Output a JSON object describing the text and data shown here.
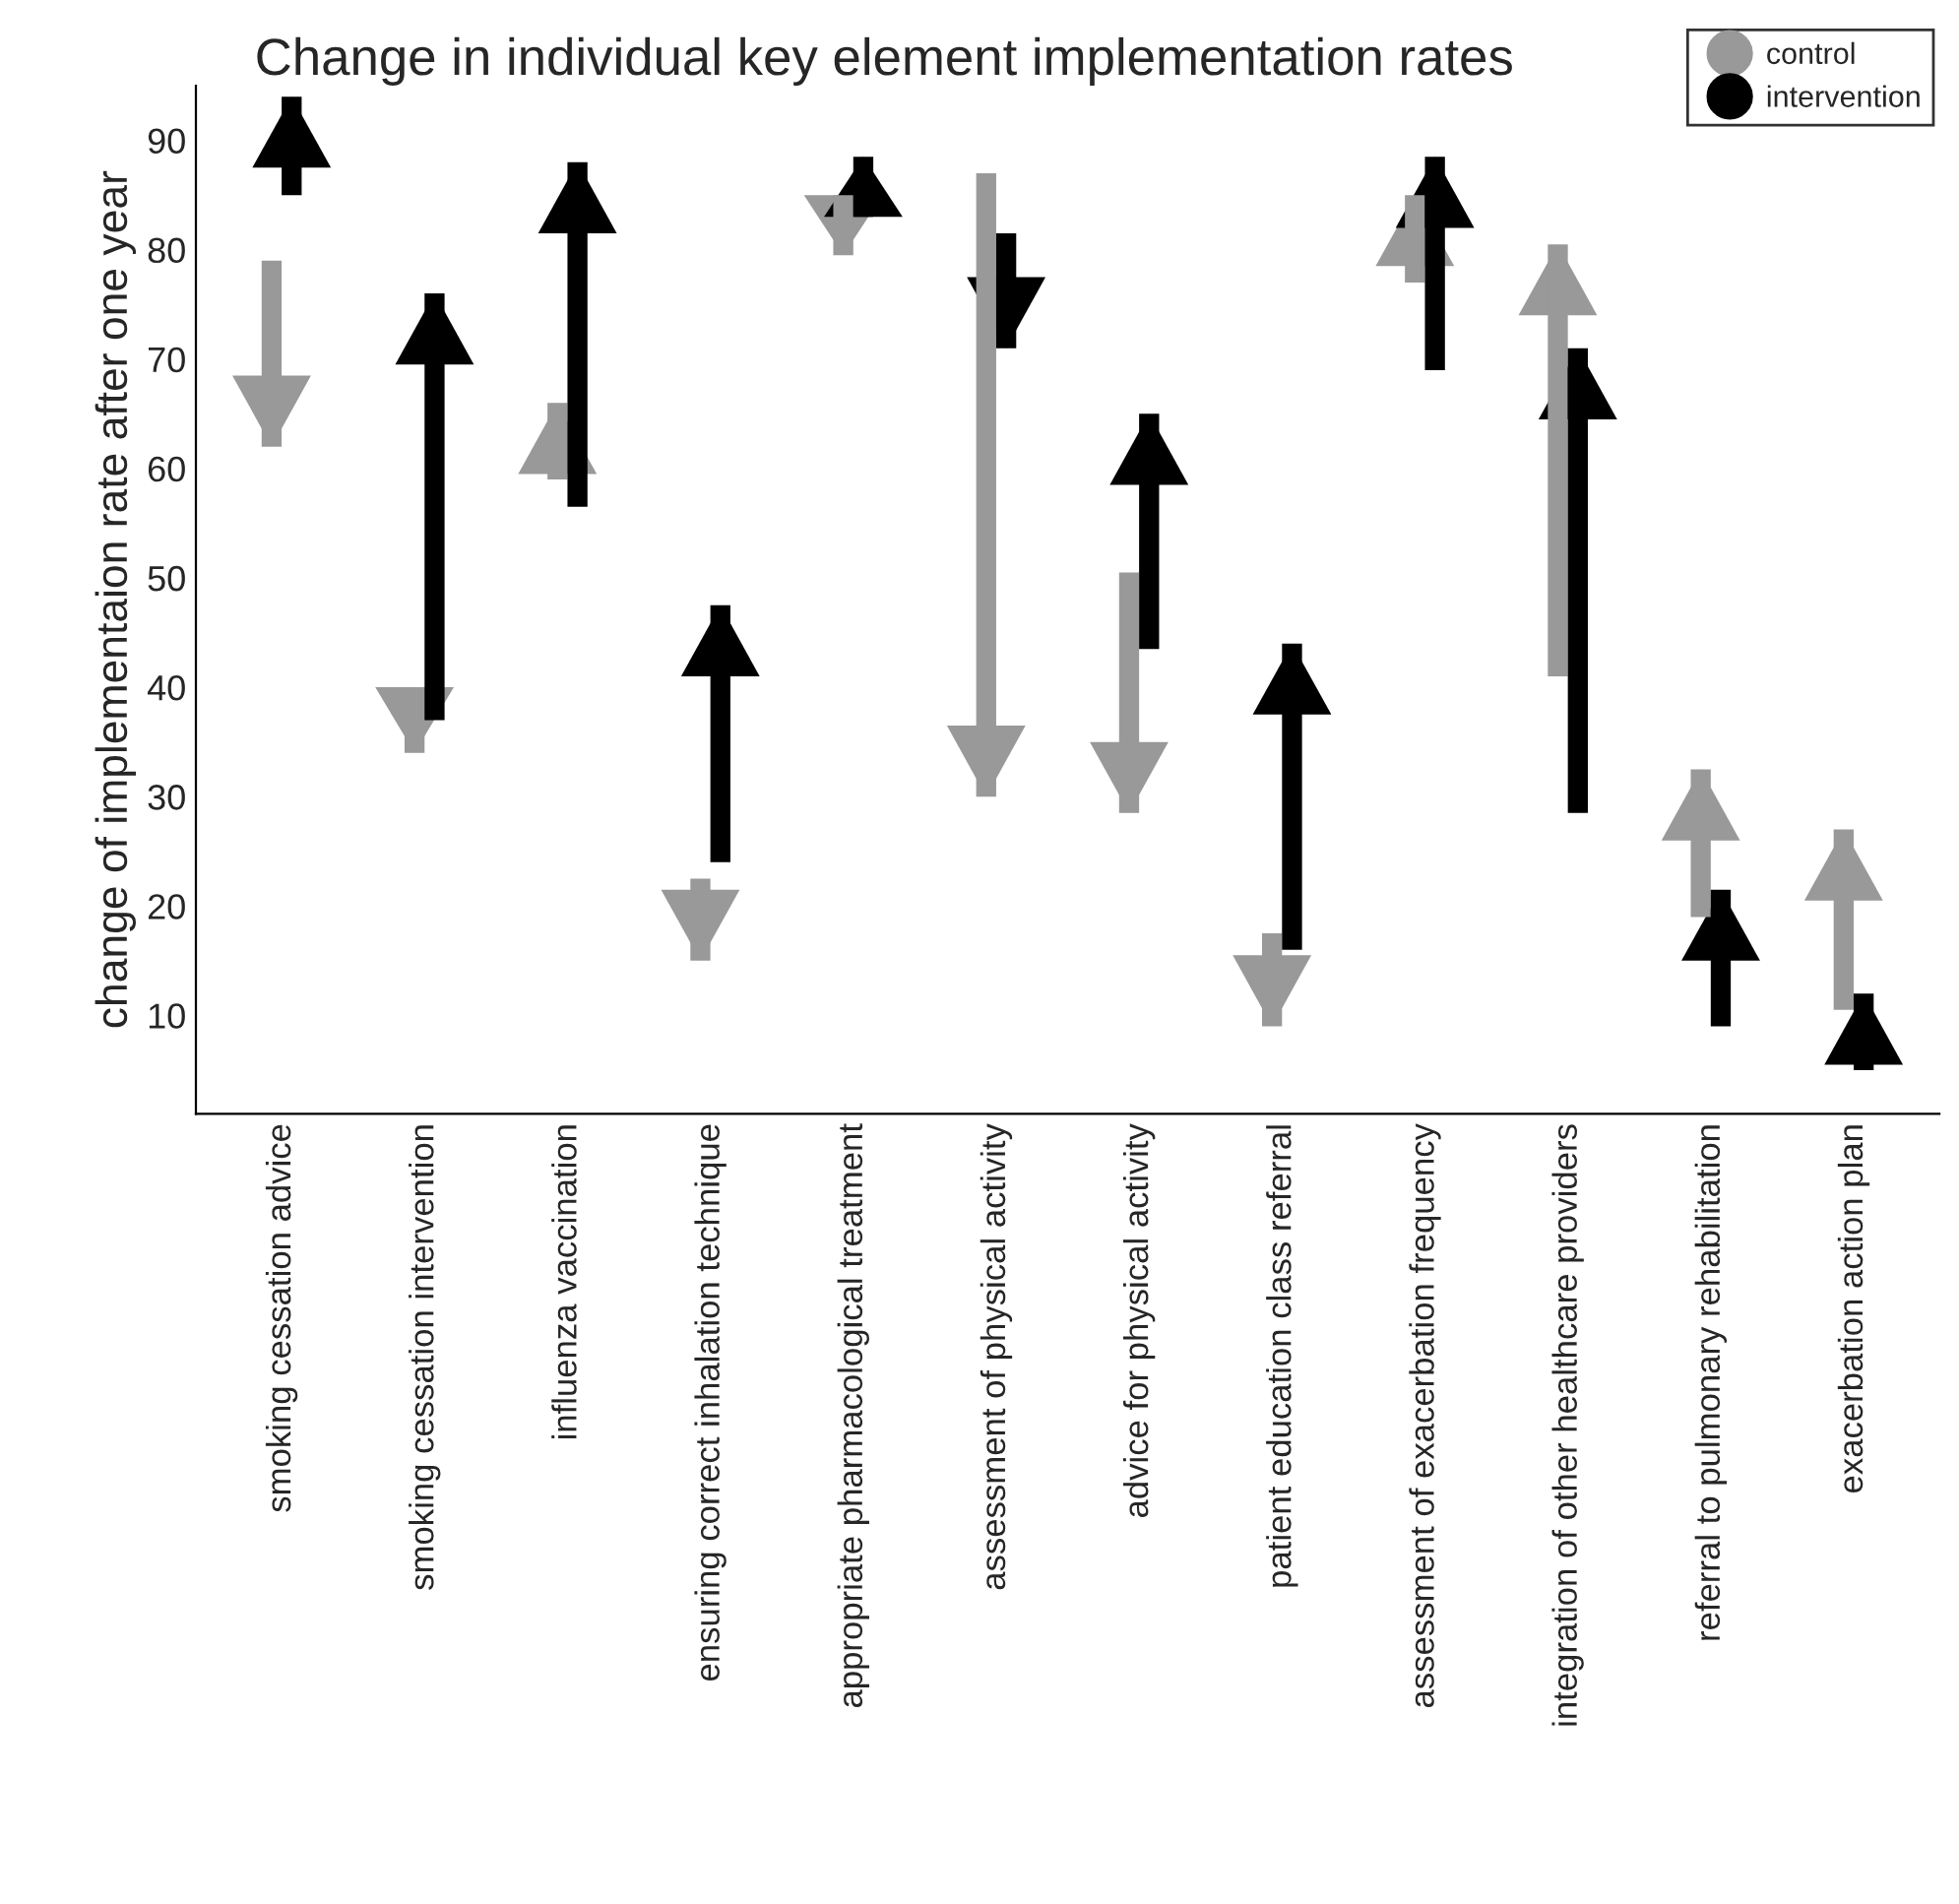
{
  "chart_data": {
    "type": "bar",
    "title": "Change in individual key element implementation rates",
    "ylabel": "change of implementaion rate after one year",
    "categories": [
      "smoking cessation advice",
      "smoking cessation intervention",
      "influenza vaccination",
      "ensuring correct inhalation technique",
      "appropriate pharmacological treatment",
      "assessment of physical activity",
      "advice for physical activity",
      "patient education class referral",
      "assessment of exacerbation frequency",
      "integration of other healthcare providers",
      "referral to pulmonary rehabilitation",
      "exacerbation action plan"
    ],
    "series": [
      {
        "name": "control",
        "color": "#999999",
        "base": [
          79,
          40,
          59,
          22.5,
          85,
          87,
          50.5,
          17.5,
          77,
          41,
          19,
          10.5
        ],
        "values": [
          -17,
          -6,
          7,
          -7.5,
          -5.5,
          -57,
          -22,
          -8.5,
          8,
          39.5,
          13.5,
          16.5
        ]
      },
      {
        "name": "intervention",
        "color": "#000000",
        "base": [
          85,
          37,
          56.5,
          24,
          83,
          81.5,
          43.5,
          16,
          69,
          28.5,
          9,
          5
        ],
        "values": [
          9,
          39,
          31.5,
          23.5,
          5.5,
          -10.5,
          21.5,
          28,
          19.5,
          42.5,
          12.5,
          7
        ]
      }
    ],
    "ylim": [
      1,
      95
    ],
    "yticks": [
      10,
      20,
      30,
      40,
      50,
      60,
      70,
      80,
      90
    ],
    "legend": "top right"
  }
}
